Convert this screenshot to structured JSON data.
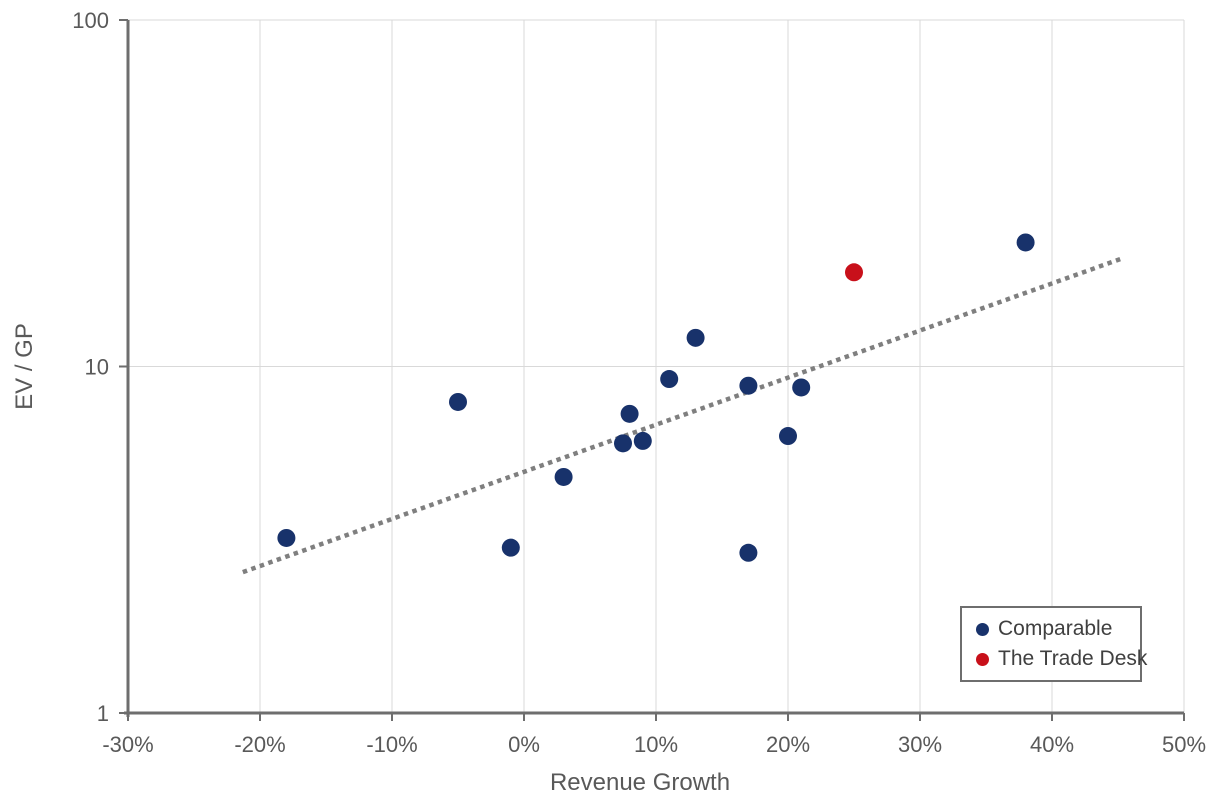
{
  "chart_data": {
    "type": "scatter",
    "title": "",
    "xlabel": "Revenue Growth",
    "ylabel": "EV / GP",
    "x_axis": {
      "min": -30,
      "max": 50,
      "unit": "percent",
      "ticks": [
        -30,
        -20,
        -10,
        0,
        10,
        20,
        30,
        40,
        50
      ],
      "tick_labels": [
        "-30%",
        "-20%",
        "-10%",
        "0%",
        "10%",
        "20%",
        "30%",
        "40%",
        "50%"
      ]
    },
    "y_axis": {
      "scale": "log",
      "min": 1,
      "max": 100,
      "ticks": [
        1,
        10,
        100
      ],
      "tick_labels": [
        "1",
        "10",
        "100"
      ]
    },
    "series": [
      {
        "name": "Comparable",
        "color": "#18326B",
        "points": [
          {
            "x": -18,
            "y": 3.2
          },
          {
            "x": -5,
            "y": 7.9
          },
          {
            "x": -1,
            "y": 3.0
          },
          {
            "x": 3,
            "y": 4.8
          },
          {
            "x": 7.5,
            "y": 6.0
          },
          {
            "x": 8,
            "y": 7.3
          },
          {
            "x": 9,
            "y": 6.1
          },
          {
            "x": 11,
            "y": 9.2
          },
          {
            "x": 13,
            "y": 12.1
          },
          {
            "x": 17,
            "y": 8.8
          },
          {
            "x": 17,
            "y": 2.9
          },
          {
            "x": 20,
            "y": 6.3
          },
          {
            "x": 21,
            "y": 8.7
          },
          {
            "x": 38,
            "y": 22.8
          }
        ]
      },
      {
        "name": "The Trade Desk",
        "color": "#C8101A",
        "points": [
          {
            "x": 25,
            "y": 18.7
          }
        ]
      }
    ],
    "trendline": {
      "style": "dotted",
      "color": "#7F7F7F",
      "from": {
        "x": -21.3,
        "y": 2.55
      },
      "to": {
        "x": 45.3,
        "y": 20.5
      }
    },
    "grid": true,
    "legend_position": "bottom-right",
    "colors": {
      "gridline": "#D9D9D9",
      "axis_line": "#6E6E6E",
      "tick_text": "#595959",
      "axis_title_text": "#595959",
      "legend_text": "#404040",
      "legend_border": "#6E6E6E"
    }
  }
}
